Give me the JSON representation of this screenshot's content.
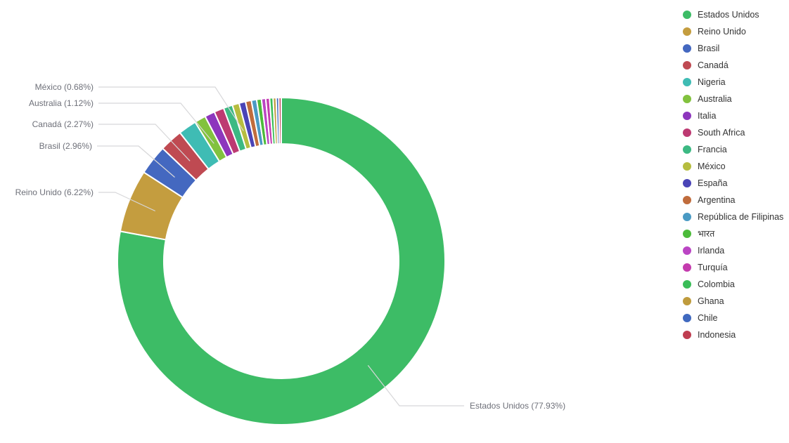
{
  "chart_data": {
    "type": "pie",
    "subtype": "donut",
    "title": "",
    "unit": "%",
    "legend_position": "right",
    "start_angle_deg": 0,
    "direction": "clockwise",
    "categories": [
      "Estados Unidos",
      "Reino Unido",
      "Brasil",
      "Canadá",
      "Nigeria",
      "Australia",
      "Italia",
      "South Africa",
      "Francia",
      "México",
      "España",
      "Argentina",
      "República de Filipinas",
      "भारत",
      "Irlanda",
      "Turquía",
      "Colombia",
      "Ghana",
      "Chile",
      "Indonesia"
    ],
    "values": [
      77.93,
      6.22,
      2.96,
      2.27,
      1.8,
      1.12,
      1.0,
      0.97,
      0.9,
      0.68,
      0.64,
      0.58,
      0.52,
      0.47,
      0.42,
      0.38,
      0.34,
      0.3,
      0.26,
      0.24
    ],
    "colors": [
      "#3dbc66",
      "#c49d3f",
      "#4468c0",
      "#bf4a52",
      "#3fbcb4",
      "#82c23e",
      "#8d36bd",
      "#bd3a72",
      "#3cb983",
      "#b6bd3f",
      "#4a44b7",
      "#c06c3c",
      "#4a9ac4",
      "#4cbb3a",
      "#bb45c4",
      "#c43bae",
      "#3abd58",
      "#bf9b3d",
      "#4069bf",
      "#bf3d50"
    ],
    "callouts": [
      {
        "category": "México",
        "text": "México (0.68%)"
      },
      {
        "category": "Australia",
        "text": "Australia (1.12%)"
      },
      {
        "category": "Canadá",
        "text": "Canadá (2.27%)"
      },
      {
        "category": "Brasil",
        "text": "Brasil (2.96%)"
      },
      {
        "category": "Reino Unido",
        "text": "Reino Unido (6.22%)"
      },
      {
        "category": "Estados Unidos",
        "text": "Estados Unidos (77.93%)"
      }
    ],
    "label_text_color": "#6e7079",
    "leader_line_color": "#d7d7d9",
    "legend_text_color": "#333333",
    "slice_border_color": "#ffffff"
  }
}
